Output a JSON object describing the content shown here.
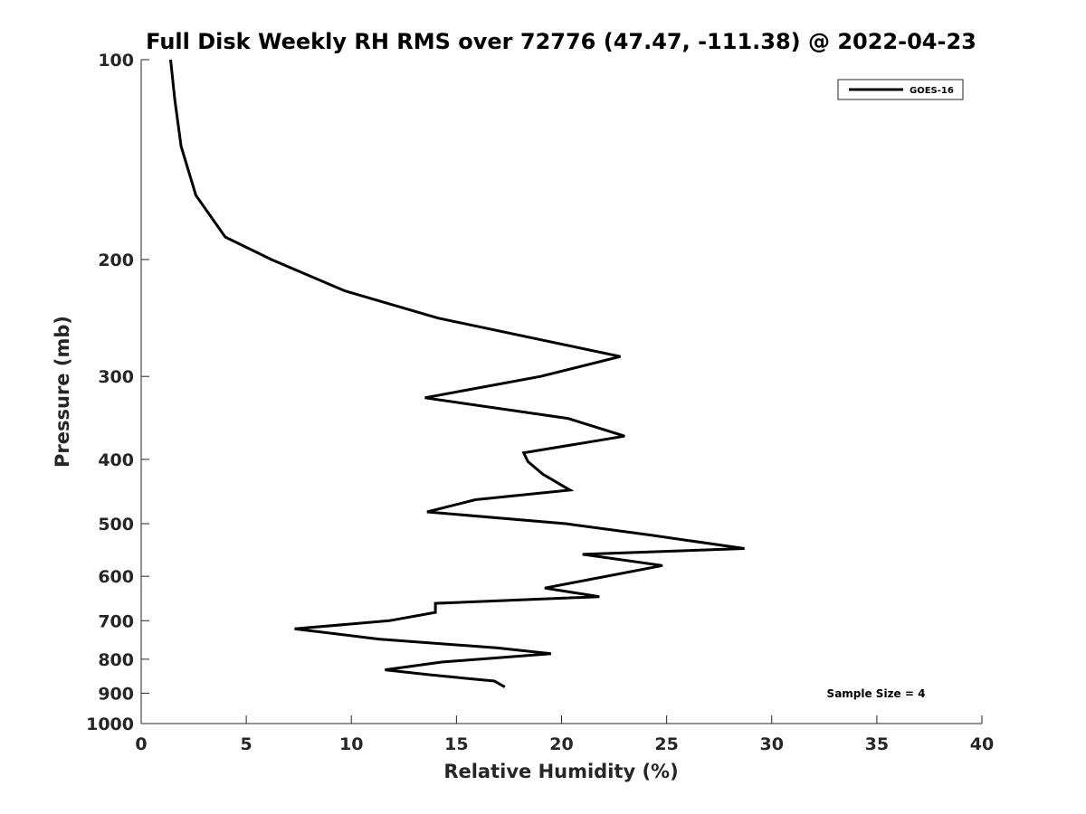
{
  "chart_data": {
    "type": "line",
    "title": "Full Disk Weekly RH RMS over 72776 (47.47, -111.38) @ 2022-04-23",
    "xlabel": "Relative Humidity (%)",
    "ylabel": "Pressure (mb)",
    "xlim": [
      0,
      40
    ],
    "ylim": [
      100,
      1000
    ],
    "y_scale": "log",
    "y_reversed": true,
    "x_ticks": [
      0,
      5,
      10,
      15,
      20,
      25,
      30,
      35,
      40
    ],
    "y_ticks": [
      100,
      200,
      300,
      400,
      500,
      600,
      700,
      800,
      900,
      1000
    ],
    "grid": false,
    "legend_position": "top-right",
    "annotation": "Sample Size = 4",
    "series": [
      {
        "name": "GOES-16",
        "color": "#000000",
        "points": [
          [
            1.4,
            100
          ],
          [
            1.6,
            115
          ],
          [
            1.9,
            135
          ],
          [
            2.6,
            160
          ],
          [
            4.0,
            185
          ],
          [
            6.2,
            200
          ],
          [
            9.7,
            223
          ],
          [
            14.1,
            245
          ],
          [
            22.8,
            280
          ],
          [
            19.0,
            300
          ],
          [
            13.5,
            323
          ],
          [
            20.3,
            347
          ],
          [
            23.0,
            369
          ],
          [
            18.2,
            391
          ],
          [
            18.4,
            403
          ],
          [
            19.1,
            421
          ],
          [
            20.4,
            445
          ],
          [
            15.9,
            460
          ],
          [
            13.6,
            480
          ],
          [
            20.2,
            500
          ],
          [
            24.2,
            520
          ],
          [
            28.7,
            545
          ],
          [
            21.0,
            556
          ],
          [
            24.8,
            578
          ],
          [
            21.3,
            607
          ],
          [
            19.2,
            625
          ],
          [
            21.8,
            644
          ],
          [
            14.0,
            659
          ],
          [
            14.0,
            680
          ],
          [
            11.8,
            700
          ],
          [
            7.3,
            720
          ],
          [
            11.3,
            746
          ],
          [
            16.9,
            769
          ],
          [
            19.5,
            785
          ],
          [
            14.3,
            808
          ],
          [
            11.6,
            830
          ],
          [
            13.8,
            845
          ],
          [
            16.8,
            863
          ],
          [
            17.3,
            881
          ]
        ]
      }
    ]
  }
}
